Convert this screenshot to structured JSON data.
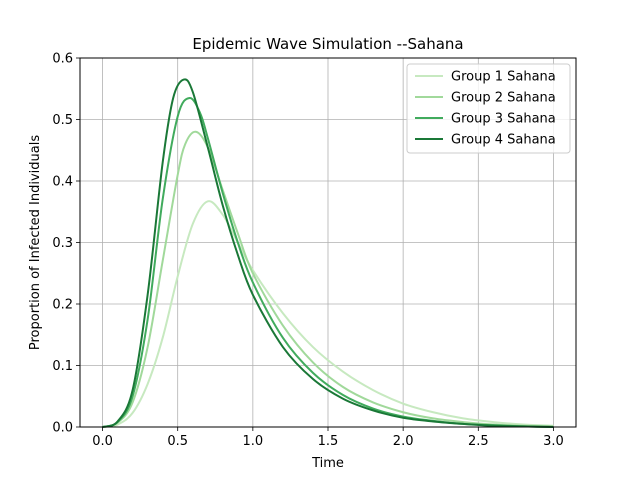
{
  "chart_data": {
    "type": "line",
    "title": "Epidemic Wave Simulation --Sahana",
    "xlabel": "Time",
    "ylabel": "Proportion of Infected Individuals",
    "xlim": [
      -0.15,
      3.15
    ],
    "ylim": [
      0,
      0.6
    ],
    "xticks": [
      0.0,
      0.5,
      1.0,
      1.5,
      2.0,
      2.5,
      3.0
    ],
    "xtick_labels": [
      "0.0",
      "0.5",
      "1.0",
      "1.5",
      "2.0",
      "2.5",
      "3.0"
    ],
    "yticks": [
      0.0,
      0.1,
      0.2,
      0.3,
      0.4,
      0.5,
      0.6
    ],
    "ytick_labels": [
      "0.0",
      "0.1",
      "0.2",
      "0.3",
      "0.4",
      "0.5",
      "0.6"
    ],
    "grid": true,
    "legend_position": "top-right",
    "series": [
      {
        "name": "Group 1 Sahana",
        "color": "#c7e9c0",
        "x": [
          0.0,
          0.1,
          0.2,
          0.3,
          0.4,
          0.5,
          0.6,
          0.7,
          0.8,
          0.9,
          1.0,
          1.2,
          1.4,
          1.6,
          1.8,
          2.0,
          2.2,
          2.4,
          2.6,
          2.8,
          3.0
        ],
        "y": [
          0.0,
          0.004,
          0.023,
          0.07,
          0.145,
          0.245,
          0.33,
          0.367,
          0.345,
          0.3,
          0.255,
          0.185,
          0.13,
          0.09,
          0.06,
          0.038,
          0.024,
          0.014,
          0.008,
          0.004,
          0.002
        ]
      },
      {
        "name": "Group 2 Sahana",
        "color": "#a1d99b",
        "x": [
          0.0,
          0.1,
          0.2,
          0.3,
          0.4,
          0.5,
          0.55,
          0.62,
          0.7,
          0.8,
          0.9,
          1.0,
          1.2,
          1.4,
          1.6,
          1.8,
          2.0,
          2.2,
          2.4,
          2.6,
          2.8,
          3.0
        ],
        "y": [
          0.0,
          0.007,
          0.04,
          0.13,
          0.27,
          0.41,
          0.46,
          0.48,
          0.455,
          0.385,
          0.315,
          0.25,
          0.165,
          0.105,
          0.065,
          0.04,
          0.024,
          0.014,
          0.008,
          0.004,
          0.002,
          0.001
        ]
      },
      {
        "name": "Group 3 Sahana",
        "color": "#41ab5d",
        "x": [
          0.0,
          0.1,
          0.2,
          0.3,
          0.4,
          0.5,
          0.58,
          0.65,
          0.7,
          0.8,
          0.9,
          1.0,
          1.2,
          1.4,
          1.6,
          1.8,
          2.0,
          2.2,
          2.4,
          2.6,
          2.8,
          3.0
        ],
        "y": [
          0.0,
          0.008,
          0.05,
          0.175,
          0.37,
          0.505,
          0.535,
          0.51,
          0.47,
          0.38,
          0.3,
          0.235,
          0.145,
          0.088,
          0.052,
          0.03,
          0.017,
          0.01,
          0.005,
          0.003,
          0.001,
          0.0
        ]
      },
      {
        "name": "Group 4 Sahana",
        "color": "#1a7837",
        "x": [
          0.0,
          0.1,
          0.2,
          0.3,
          0.4,
          0.47,
          0.54,
          0.6,
          0.7,
          0.8,
          0.9,
          1.0,
          1.2,
          1.4,
          1.6,
          1.8,
          2.0,
          2.2,
          2.4,
          2.6,
          2.8,
          3.0
        ],
        "y": [
          0.0,
          0.009,
          0.06,
          0.215,
          0.43,
          0.535,
          0.565,
          0.545,
          0.455,
          0.36,
          0.28,
          0.215,
          0.13,
          0.078,
          0.046,
          0.027,
          0.015,
          0.009,
          0.005,
          0.002,
          0.001,
          0.0
        ]
      }
    ]
  }
}
